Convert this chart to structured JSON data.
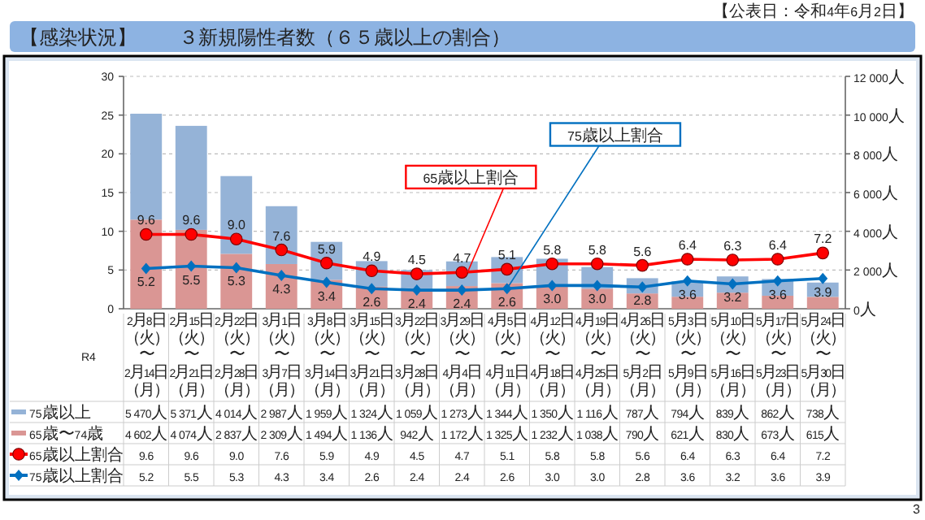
{
  "chart_data": {
    "type": "bar",
    "title": "【感染状況】",
    "subtitle": "３新規陽性者数（６５歳以上の割合）",
    "annotations": [
      "【公表日：令和4年6月2日】",
      "R4",
      "3"
    ],
    "categories": [
      "2月8日（火）〜2月14日（月）",
      "2月15日（火）〜2月21日（月）",
      "2月22日（火）〜2月28日（月）",
      "3月1日（火）〜3月7日（月）",
      "3月8日（火）〜3月14日（月）",
      "3月15日（火）〜3月21日（月）",
      "3月22日（火）〜3月28日（月）",
      "3月29日（火）〜4月4日（月）",
      "4月5日（火）〜4月11日（月）",
      "4月12日（火）〜4月18日（月）",
      "4月19日（火）〜4月25日（月）",
      "4月26日（火）〜5月2日（月）",
      "5月3日（火）〜5月9日（月）",
      "5月10日（火）〜5月16日（月）",
      "5月17日（火）〜5月23日（月）",
      "5月24日（火）〜5月30日（月）"
    ],
    "stacked": true,
    "series": [
      {
        "name": "65歳〜74歳",
        "color": "#da9694",
        "axis": "y2",
        "values": [
          4602,
          4074,
          2837,
          2309,
          1494,
          1136,
          942,
          1172,
          1325,
          1232,
          1038,
          790,
          621,
          830,
          673,
          615
        ],
        "value_labels": [
          "4 602人",
          "4 074人",
          "2 837人",
          "2 309人",
          "1 494人",
          "1 136人",
          "942人",
          "1 172人",
          "1 325人",
          "1 232人",
          "1 038人",
          "790人",
          "621人",
          "830人",
          "673人",
          "615人"
        ]
      },
      {
        "name": "75歳以上",
        "color": "#95b3d7",
        "axis": "y2",
        "values": [
          5470,
          5371,
          4014,
          2987,
          1959,
          1324,
          1059,
          1273,
          1344,
          1350,
          1116,
          787,
          794,
          839,
          862,
          738
        ],
        "value_labels": [
          "5 470人",
          "5 371人",
          "4 014人",
          "2 987人",
          "1 959人",
          "1 324人",
          "1 059人",
          "1 273人",
          "1 344人",
          "1 350人",
          "1 116人",
          "787人",
          "794人",
          "839人",
          "862人",
          "738人"
        ]
      },
      {
        "type": "line",
        "name": "65歳以上割合",
        "color": "#ff0000",
        "marker": "circle",
        "values": [
          9.6,
          9.6,
          9.0,
          7.6,
          5.9,
          4.9,
          4.5,
          4.7,
          5.1,
          5.8,
          5.8,
          5.6,
          6.4,
          6.3,
          6.4,
          7.2
        ],
        "value_labels": [
          "9.6",
          "9.6",
          "9.0",
          "7.6",
          "5.9",
          "4.9",
          "4.5",
          "4.7",
          "5.1",
          "5.8",
          "5.8",
          "5.6",
          "6.4",
          "6.3",
          "6.4",
          "7.2"
        ]
      },
      {
        "type": "line",
        "name": "75歳以上割合",
        "color": "#0070c0",
        "marker": "diamond",
        "values": [
          5.2,
          5.5,
          5.3,
          4.3,
          3.4,
          2.6,
          2.4,
          2.4,
          2.6,
          3.0,
          3.0,
          2.8,
          3.6,
          3.2,
          3.6,
          3.9
        ],
        "value_labels": [
          "5.2",
          "5.5",
          "5.3",
          "4.3",
          "3.4",
          "2.6",
          "2.4",
          "2.4",
          "2.6",
          "3.0",
          "3.0",
          "2.8",
          "3.6",
          "3.2",
          "3.6",
          "3.9"
        ]
      }
    ],
    "ylim": [
      0,
      30
    ],
    "yticks": [
      0,
      5,
      10,
      15,
      20,
      25,
      30
    ],
    "y2lim": [
      0,
      12000
    ],
    "y2ticks": [
      {
        "value": 0,
        "label": "0人"
      },
      {
        "value": 2000,
        "label": "2 000人"
      },
      {
        "value": 4000,
        "label": "4 000人"
      },
      {
        "value": 6000,
        "label": "6 000人"
      },
      {
        "value": 8000,
        "label": "8 000人"
      },
      {
        "value": 10000,
        "label": "10 000人"
      },
      {
        "value": 12000,
        "label": "12 000人"
      }
    ],
    "grid": "y",
    "data_labels": true,
    "legend": "bottom"
  }
}
